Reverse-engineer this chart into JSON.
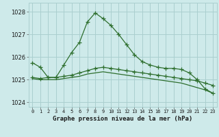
{
  "title": "Graphe pression niveau de la mer (hPa)",
  "bg_color": "#ceeaea",
  "grid_color": "#aacfcf",
  "line_color": "#2d6e2d",
  "marker": "+",
  "x_labels": [
    "0",
    "1",
    "2",
    "3",
    "4",
    "5",
    "6",
    "7",
    "8",
    "9",
    "10",
    "11",
    "12",
    "13",
    "14",
    "15",
    "16",
    "17",
    "18",
    "19",
    "20",
    "21",
    "22",
    "23"
  ],
  "series1": [
    1025.75,
    1025.55,
    1025.1,
    1025.1,
    1025.65,
    1026.2,
    1026.65,
    1027.55,
    1027.95,
    1027.7,
    1027.4,
    1027.0,
    1026.55,
    1026.1,
    1025.8,
    1025.65,
    1025.55,
    1025.5,
    1025.5,
    1025.45,
    1025.3,
    1025.0,
    1024.6,
    1024.4
  ],
  "series2": [
    1025.1,
    1025.05,
    1025.1,
    1025.1,
    1025.15,
    1025.2,
    1025.3,
    1025.4,
    1025.5,
    1025.55,
    1025.5,
    1025.45,
    1025.4,
    1025.35,
    1025.3,
    1025.25,
    1025.2,
    1025.15,
    1025.1,
    1025.05,
    1025.0,
    1024.95,
    1024.85,
    1024.75
  ],
  "series3": [
    1025.05,
    1025.0,
    1025.0,
    1025.0,
    1025.05,
    1025.1,
    1025.15,
    1025.25,
    1025.3,
    1025.35,
    1025.3,
    1025.25,
    1025.2,
    1025.15,
    1025.1,
    1025.05,
    1025.0,
    1024.95,
    1024.9,
    1024.85,
    1024.75,
    1024.65,
    1024.55,
    1024.4
  ],
  "ylim": [
    1023.8,
    1028.4
  ],
  "yticks": [
    1024,
    1025,
    1026,
    1027,
    1028
  ]
}
